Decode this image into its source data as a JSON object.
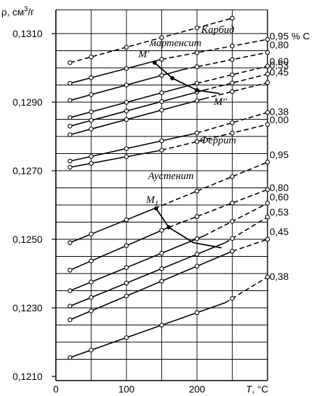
{
  "chart_data": {
    "type": "line",
    "ylabel_main": "ρ, см",
    "ylabel_sup": "3",
    "ylabel_tail": "/г",
    "xlabel_main": "T",
    "xlabel_unit": ", °C",
    "xlim": [
      0,
      300
    ],
    "ylim": [
      0.121,
      0.1315
    ],
    "x_ticks": [
      0,
      100,
      200
    ],
    "x_tick_labels": [
      "0",
      "100",
      "200"
    ],
    "y_ticks": [
      0.121,
      0.123,
      0.125,
      0.127,
      0.129,
      0.131
    ],
    "y_tick_labels": [
      "0,1210",
      "0,1230",
      "0,1250",
      "0,1270",
      "0,1290",
      "0,1310"
    ],
    "grid": true,
    "phase_labels": {
      "carbide": "Карбид",
      "martensite": "мартенсит",
      "ferrite": "Феррит",
      "austenite": "Аустенит"
    },
    "point_labels": {
      "ms_prime": "M'",
      "ms_double_prime": "M''",
      "m1": "M",
      "m1_sub": "1"
    },
    "series": [
      {
        "group": "carbide",
        "name": "",
        "solid_x": [],
        "solid_y": [],
        "dash_x": [
          20,
          250
        ],
        "dash_y": [
          0.13015,
          0.13145
        ],
        "markers": [
          20,
          50,
          100,
          150,
          200,
          250
        ]
      },
      {
        "group": "martensite",
        "name": "0,95 % С",
        "solid_x": [
          20,
          150
        ],
        "solid_y": [
          0.12955,
          0.13025
        ],
        "dash_x": [
          150,
          300
        ],
        "dash_y": [
          0.13025,
          0.13083
        ],
        "markers": [
          20,
          50,
          100,
          150,
          200,
          250,
          300
        ]
      },
      {
        "group": "martensite",
        "name": "0,80",
        "solid_x": [
          20,
          180
        ],
        "solid_y": [
          0.12905,
          0.12995
        ],
        "dash_x": [
          180,
          300
        ],
        "dash_y": [
          0.12995,
          0.13045
        ],
        "markers": [
          20,
          50,
          100,
          150,
          200,
          250,
          300
        ]
      },
      {
        "group": "martensite",
        "name": "0,60",
        "solid_x": [
          20,
          200
        ],
        "solid_y": [
          0.12855,
          0.12955
        ],
        "dash_x": [
          200,
          300
        ],
        "dash_y": [
          0.12955,
          0.13005
        ],
        "markers": [
          20,
          50,
          100,
          150,
          200,
          250,
          300
        ]
      },
      {
        "group": "martensite",
        "name": "0,53",
        "solid_x": [
          20,
          210
        ],
        "solid_y": [
          0.1283,
          0.12935
        ],
        "dash_x": [
          210,
          300
        ],
        "dash_y": [
          0.12935,
          0.12982
        ],
        "markers": [
          20,
          50,
          100,
          150,
          200,
          250,
          300
        ]
      },
      {
        "group": "martensite",
        "name": "0,45",
        "solid_x": [
          20,
          210
        ],
        "solid_y": [
          0.12805,
          0.1291
        ],
        "dash_x": [
          210,
          300
        ],
        "dash_y": [
          0.1291,
          0.12957
        ],
        "markers": [
          20,
          50,
          100,
          150,
          200,
          250,
          300
        ]
      },
      {
        "group": "ferrite",
        "name": "0,38",
        "solid_x": [
          20,
          200
        ],
        "solid_y": [
          0.12728,
          0.1281
        ],
        "dash_x": [
          200,
          300
        ],
        "dash_y": [
          0.1281,
          0.1287
        ],
        "markers": [
          20,
          50,
          100,
          150,
          200,
          250,
          300
        ]
      },
      {
        "group": "ferrite",
        "name": "0,00",
        "solid_x": [
          20,
          150
        ],
        "solid_y": [
          0.1271,
          0.1276
        ],
        "dash_x": [
          150,
          300
        ],
        "dash_y": [
          0.1276,
          0.12835
        ],
        "markers": [
          20,
          50,
          100,
          150,
          200,
          250,
          300
        ]
      },
      {
        "group": "austenite",
        "name": "0,95",
        "solid_x": [
          20,
          140
        ],
        "solid_y": [
          0.1249,
          0.1259
        ],
        "dash_x": [
          140,
          300
        ],
        "dash_y": [
          0.1259,
          0.12725
        ],
        "markers": [
          20,
          50,
          100,
          200,
          250,
          300
        ]
      },
      {
        "group": "austenite",
        "name": "0,80",
        "solid_x": [
          20,
          160
        ],
        "solid_y": [
          0.1241,
          0.12535
        ],
        "dash_x": [
          160,
          300
        ],
        "dash_y": [
          0.12535,
          0.12645
        ],
        "markers": [
          20,
          50,
          100,
          150,
          200,
          250,
          300
        ]
      },
      {
        "group": "austenite",
        "name": "0,60",
        "solid_x": [
          20,
          210
        ],
        "solid_y": [
          0.1235,
          0.1251
        ],
        "dash_x": [
          210,
          300
        ],
        "dash_y": [
          0.1251,
          0.12605
        ],
        "markers": [
          20,
          50,
          100,
          150,
          200,
          250,
          300
        ]
      },
      {
        "group": "austenite",
        "name": "0,53",
        "solid_x": [
          20,
          240
        ],
        "solid_y": [
          0.12305,
          0.1249
        ],
        "dash_x": [
          240,
          300
        ],
        "dash_y": [
          0.1249,
          0.12565
        ],
        "markers": [
          20,
          50,
          100,
          150,
          200,
          250,
          300
        ]
      },
      {
        "group": "austenite",
        "name": "0,45",
        "solid_x": [
          20,
          250
        ],
        "solid_y": [
          0.12265,
          0.12465
        ],
        "dash_x": [
          250,
          300
        ],
        "dash_y": [
          0.12465,
          0.125
        ],
        "markers": [
          20,
          50,
          100,
          150,
          200,
          250,
          300
        ]
      },
      {
        "group": "austenite",
        "name": "0,38",
        "solid_x": [
          20,
          240
        ],
        "solid_y": [
          0.12155,
          0.12315
        ],
        "dash_x": [
          240,
          300
        ],
        "dash_y": [
          0.12315,
          0.1239
        ],
        "markers": [
          20,
          50,
          100,
          150,
          200,
          250,
          300
        ]
      }
    ],
    "transition_curves": [
      {
        "name": "",
        "x": [
          140,
          165,
          200,
          232
        ],
        "y": [
          0.13015,
          0.1297,
          0.12935,
          0.12925
        ]
      },
      {
        "name": "",
        "x": [
          142,
          160,
          195,
          235
        ],
        "y": [
          0.1259,
          0.12535,
          0.1249,
          0.12475
        ]
      }
    ],
    "transition_points": [
      {
        "x": 140,
        "y": 0.13015
      },
      {
        "x": 165,
        "y": 0.1297
      },
      {
        "x": 200,
        "y": 0.12935
      },
      {
        "x": 142,
        "y": 0.1259
      },
      {
        "x": 160,
        "y": 0.12535
      }
    ]
  }
}
